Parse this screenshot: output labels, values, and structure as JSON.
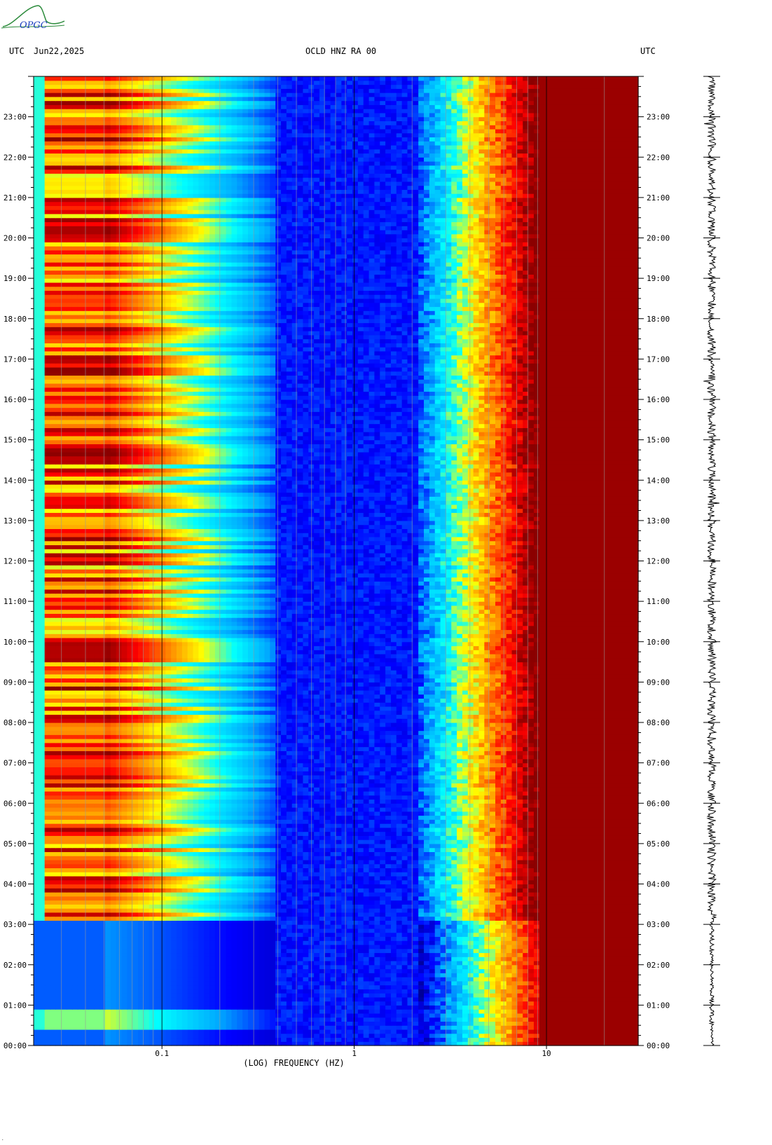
{
  "header": {
    "left_zone": "UTC",
    "date": "Jun22,2025",
    "station": "OCLD HNZ RA 00",
    "right_zone": "UTC"
  },
  "logo": {
    "text": "OPGC"
  },
  "footnote": ".",
  "chart_data": {
    "type": "heatmap",
    "title": "OCLD HNZ RA 00",
    "xlabel": "(LOG) FREQUENCY (HZ)",
    "x_scale": "log",
    "x_range": [
      0.0215,
      30
    ],
    "x_tick_labels": [
      {
        "value": 0.1,
        "label": "0.1"
      },
      {
        "value": 1,
        "label": "1"
      },
      {
        "value": 10,
        "label": "10"
      }
    ],
    "y_range_hours": [
      0,
      24
    ],
    "y_tick_labels": [
      "00:00",
      "01:00",
      "02:00",
      "03:00",
      "04:00",
      "05:00",
      "06:00",
      "07:00",
      "08:00",
      "09:00",
      "10:00",
      "11:00",
      "12:00",
      "13:00",
      "14:00",
      "15:00",
      "16:00",
      "17:00",
      "18:00",
      "19:00",
      "20:00",
      "21:00",
      "22:00",
      "23:00"
    ],
    "colormap": [
      "#00008b",
      "#0000ff",
      "#00aaff",
      "#00ffff",
      "#ffff00",
      "#ff8800",
      "#ff0000",
      "#8b0000"
    ],
    "background": "#00008b",
    "grid": true,
    "seismogram_trace": true
  }
}
